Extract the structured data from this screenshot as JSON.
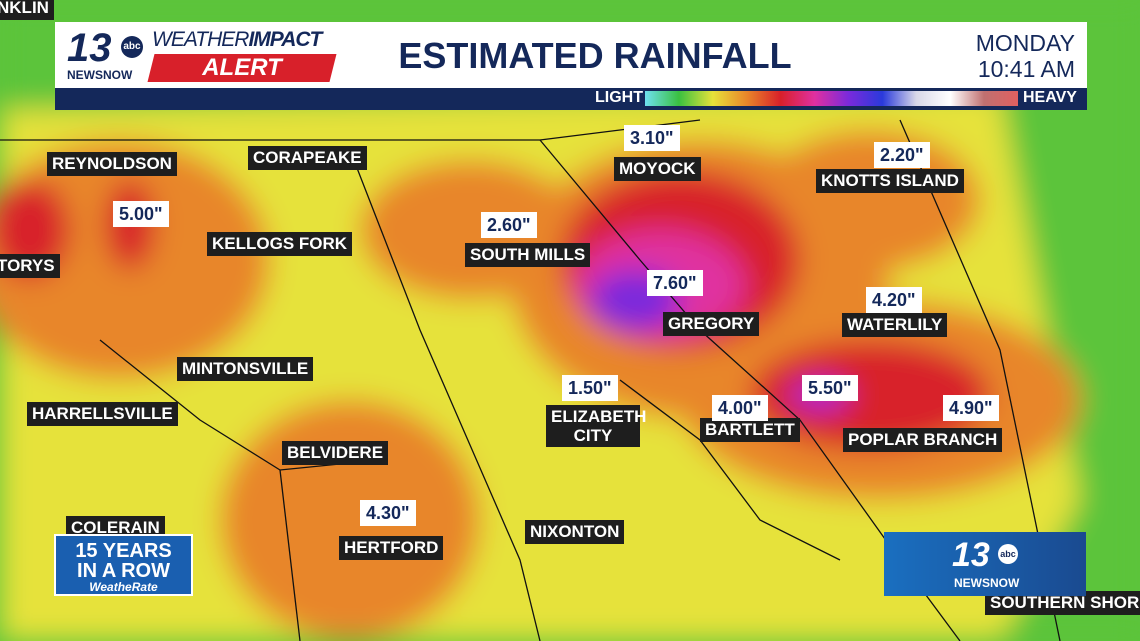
{
  "header": {
    "logo": {
      "number": "13",
      "network": "abc",
      "brand": "NEWSNOW"
    },
    "alert": {
      "word1": "WEATHER",
      "word2": "IMPACT",
      "word3": "ALERT"
    },
    "title": "ESTIMATED RAINFALL",
    "day": "MONDAY",
    "time": "10:41 AM"
  },
  "legend": {
    "low": "LIGHT",
    "high": "HEAVY"
  },
  "places": [
    "NKLIN",
    "REYNOLDSON",
    "CORAPEAKE",
    "KELLOGS FORK",
    "TORYS",
    "SOUTH MILLS",
    "MOYOCK",
    "KNOTTS ISLAND",
    "GREGORY",
    "WATERLILY",
    "MINTONSVILLE",
    "HARRELLSVILLE",
    "ELIZABETH CITY",
    "BARTLETT",
    "POPLAR BRANCH",
    "BELVIDERE",
    "HERTFORD",
    "NIXONTON",
    "COLERAIN",
    "SOUTHERN SHOR"
  ],
  "rainfall_totals": [
    "5.00\"",
    "2.60\"",
    "3.10\"",
    "2.20\"",
    "7.60\"",
    "4.20\"",
    "1.50\"",
    "4.00\"",
    "5.50\"",
    "4.90\"",
    "4.30\""
  ],
  "badge": {
    "line1": "15 YEARS",
    "line2": "IN A ROW",
    "line3": "WeatheRate"
  },
  "corner_logo": {
    "number": "13",
    "network": "abc",
    "brand": "NEWSNOW"
  }
}
